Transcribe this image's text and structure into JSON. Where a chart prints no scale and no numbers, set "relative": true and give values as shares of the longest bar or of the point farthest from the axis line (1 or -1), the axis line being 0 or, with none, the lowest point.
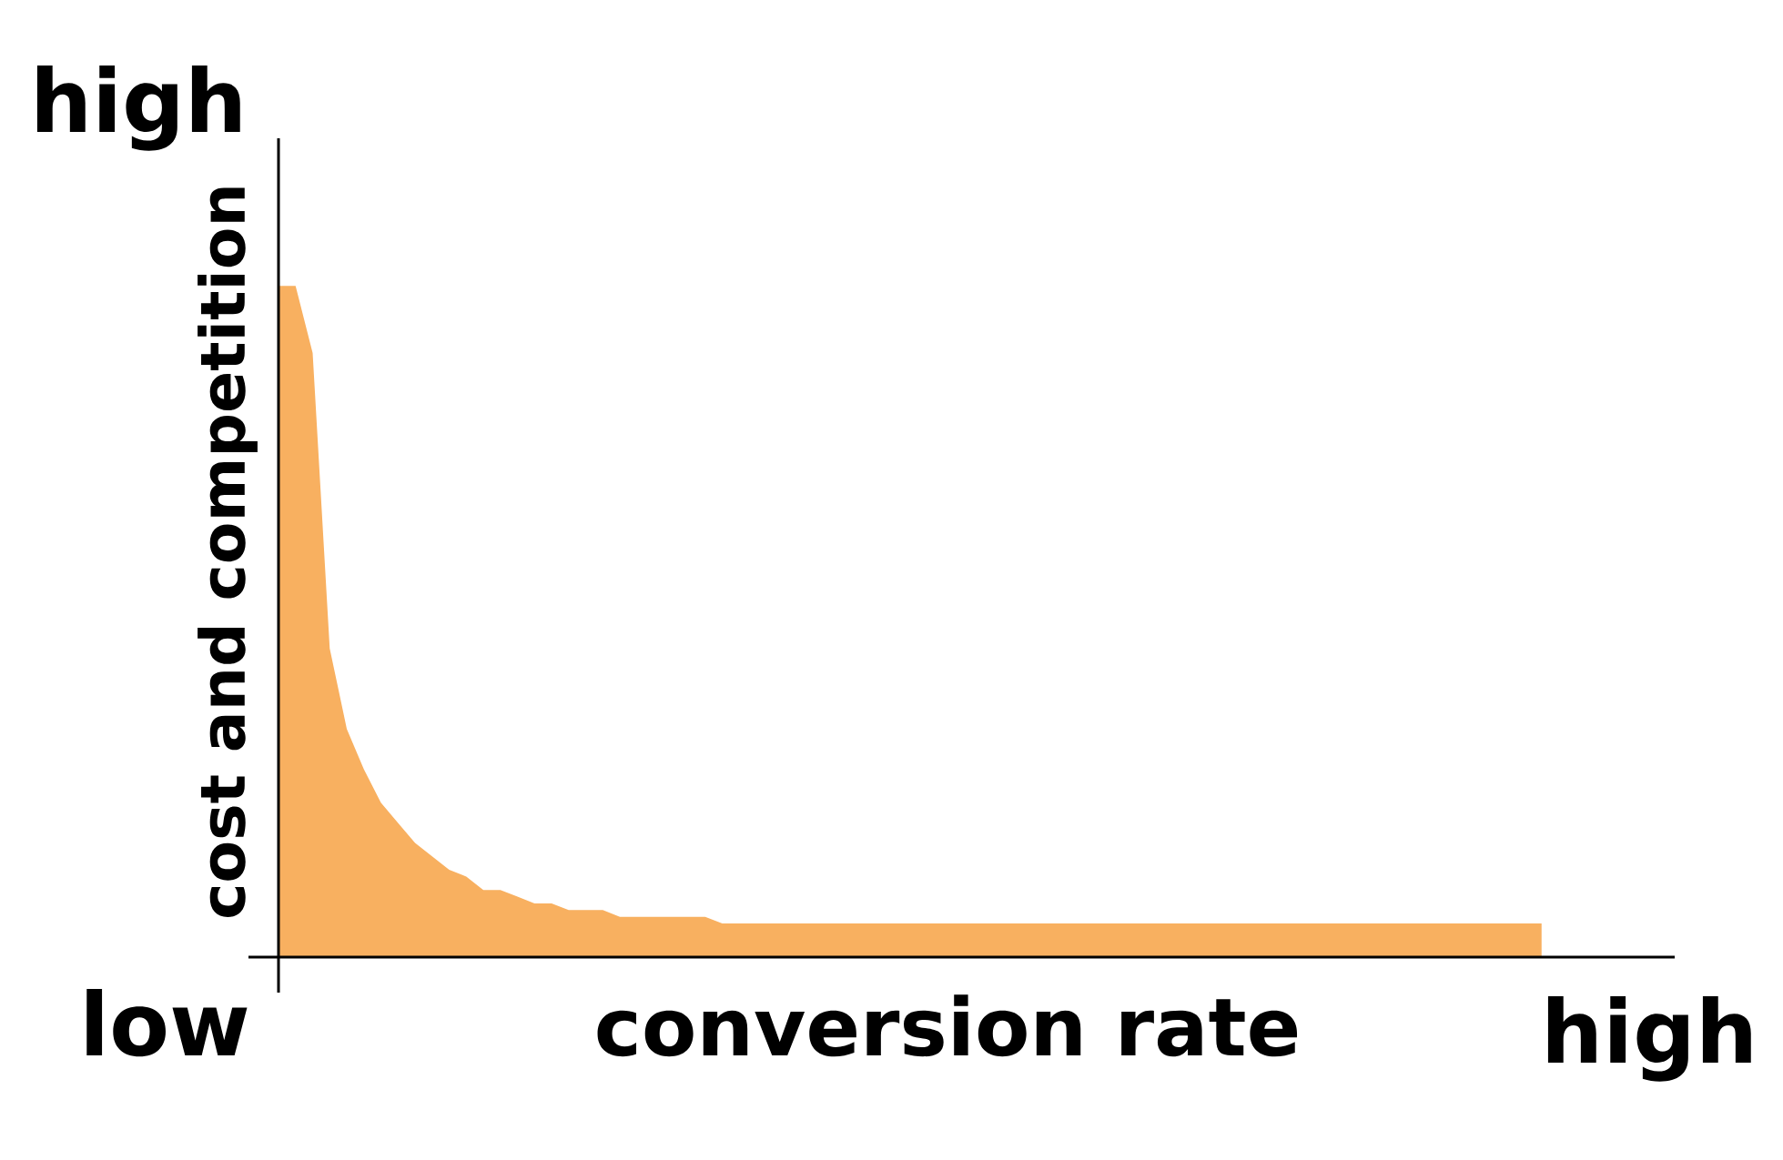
{
  "chart_data": {
    "type": "area",
    "relative": true,
    "xlabel": "conversion rate",
    "ylabel": "cost and competition",
    "annotations": [
      "high",
      "low",
      "high"
    ],
    "categories": [
      null,
      null,
      null,
      null,
      null,
      null,
      null,
      null,
      null,
      null,
      null,
      null,
      null,
      null,
      null,
      null,
      null,
      null,
      null,
      null,
      null,
      null,
      null,
      null,
      null,
      null,
      null,
      null,
      null,
      null,
      null,
      null,
      null,
      null,
      null,
      null,
      null,
      null,
      null,
      null,
      null,
      null,
      null,
      null,
      null,
      null,
      null,
      null,
      null,
      null,
      null,
      null,
      null,
      null,
      null,
      null,
      null,
      null,
      null,
      null,
      null,
      null,
      null,
      null,
      null,
      null,
      null,
      null,
      null,
      null,
      null,
      null,
      null,
      null,
      null
    ],
    "series": [
      {
        "color": "#f8b060",
        "values": [
          1.0,
          1.0,
          0.9,
          0.46,
          0.34,
          0.28,
          0.23,
          0.2,
          0.17,
          0.15,
          0.13,
          0.12,
          0.1,
          0.1,
          0.09,
          0.08,
          0.08,
          0.07,
          0.07,
          0.07,
          0.06,
          0.06,
          0.06,
          0.06,
          0.06,
          0.06,
          0.05,
          0.05,
          0.05,
          0.05,
          0.05,
          0.05,
          0.05,
          0.05,
          0.05,
          0.05,
          0.05,
          0.05,
          0.05,
          0.05,
          0.05,
          0.05,
          0.05,
          0.05,
          0.05,
          0.05,
          0.05,
          0.05,
          0.05,
          0.05,
          0.05,
          0.05,
          0.05,
          0.05,
          0.05,
          0.05,
          0.05,
          0.05,
          0.05,
          0.05,
          0.05,
          0.05,
          0.05,
          0.05,
          0.05,
          0.05,
          0.05,
          0.05,
          0.05,
          0.05,
          0.05,
          0.05,
          0.05,
          0.05,
          0.05
        ]
      }
    ]
  }
}
